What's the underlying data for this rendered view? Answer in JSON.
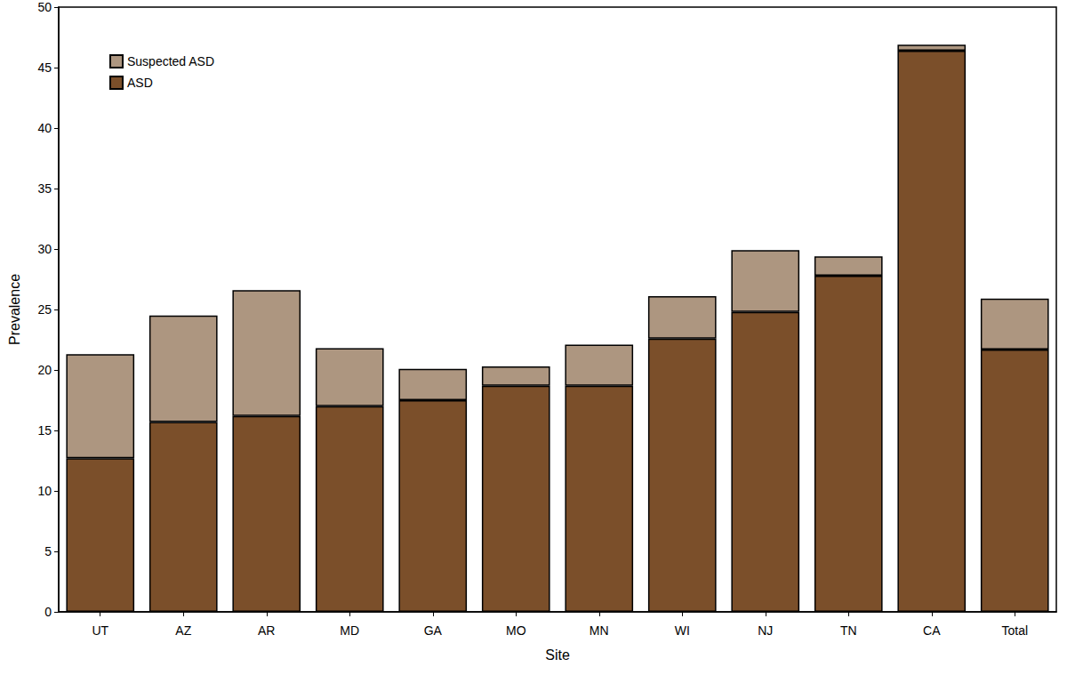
{
  "chart_data": {
    "type": "bar",
    "stacked": true,
    "legend": "top-left",
    "grid": false,
    "x_label": "Site",
    "y_label": "Prevalence",
    "categories": [
      "UT",
      "AZ",
      "AR",
      "MD",
      "GA",
      "MO",
      "MN",
      "WI",
      "NJ",
      "TN",
      "CA",
      "Total"
    ],
    "series": [
      {
        "name": "ASD",
        "color": "#7b4f2a",
        "values": [
          12.7,
          15.7,
          16.2,
          17.0,
          17.5,
          18.7,
          18.7,
          22.6,
          24.8,
          27.8,
          46.4,
          21.7
        ]
      },
      {
        "name": "Suspected ASD",
        "color": "#ad9680",
        "values": [
          8.6,
          8.8,
          10.4,
          4.8,
          2.6,
          1.6,
          3.4,
          3.5,
          5.1,
          1.6,
          0.5,
          4.2
        ]
      }
    ],
    "ylim": [
      0,
      50
    ],
    "yticks": [
      0,
      5,
      10,
      15,
      20,
      25,
      30,
      35,
      40,
      45,
      50
    ]
  }
}
